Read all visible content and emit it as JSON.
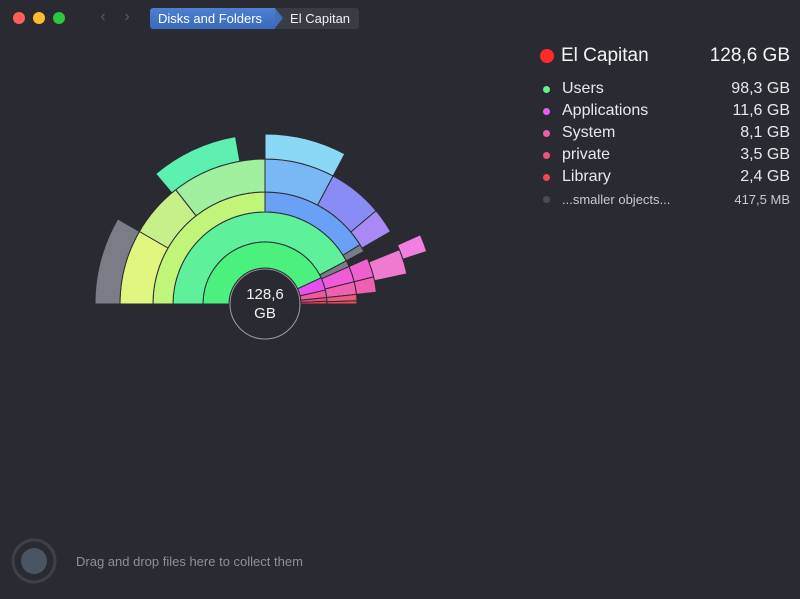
{
  "window": {
    "breadcrumbs": [
      "Disks and Folders",
      "El Capitan"
    ]
  },
  "center": {
    "value": "128,6",
    "unit": "GB"
  },
  "legend": {
    "title": "El Capitan",
    "total": "128,6 GB",
    "title_color": "#ff2b2b",
    "items": [
      {
        "name": "Users",
        "size": "98,3 GB",
        "color": "#5ef58a",
        "icon": "dot"
      },
      {
        "name": "Applications",
        "size": "11,6 GB",
        "color": "#e85cf2",
        "icon": "dot"
      },
      {
        "name": "System",
        "size": "8,1 GB",
        "color": "#f25caa",
        "icon": "dot"
      },
      {
        "name": "private",
        "size": "3,5 GB",
        "color": "#f2507a",
        "icon": "dot"
      },
      {
        "name": "Library",
        "size": "2,4 GB",
        "color": "#f2465a",
        "icon": "dot"
      },
      {
        "name": "...smaller objects...",
        "size": "417,5  MB",
        "color": "#4a4c55",
        "icon": "dot"
      }
    ]
  },
  "drop": {
    "text": "Drag and drop files here to collect them",
    "icon": "collector-icon"
  }
}
